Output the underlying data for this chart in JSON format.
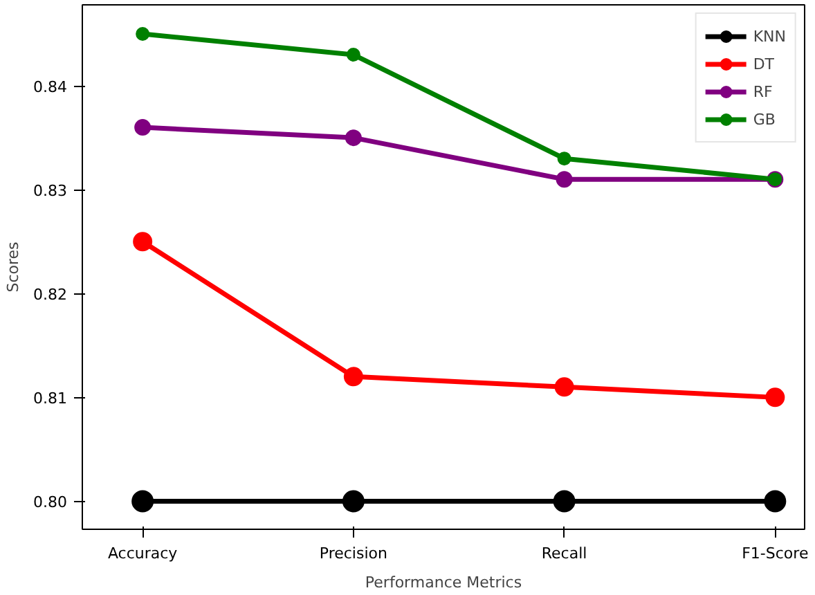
{
  "chart_data": {
    "type": "line",
    "xlabel": "Performance Metrics",
    "ylabel": "Scores",
    "categories": [
      "Accuracy",
      "Precision",
      "Recall",
      "F1-Score"
    ],
    "series": [
      {
        "name": "KNN",
        "color": "#000000",
        "values": [
          0.8,
          0.8,
          0.8,
          0.8
        ]
      },
      {
        "name": "DT",
        "color": "#ff0000",
        "values": [
          0.825,
          0.812,
          0.811,
          0.81
        ]
      },
      {
        "name": "RF",
        "color": "#800080",
        "values": [
          0.836,
          0.835,
          0.831,
          0.831
        ]
      },
      {
        "name": "GB",
        "color": "#008000",
        "values": [
          0.845,
          0.843,
          0.833,
          0.831
        ]
      }
    ],
    "ylim": [
      0.7973,
      0.8478
    ],
    "yticks": [
      {
        "value": 0.8,
        "label": "0.80"
      },
      {
        "value": 0.81,
        "label": "0.81"
      },
      {
        "value": 0.82,
        "label": "0.82"
      },
      {
        "value": 0.83,
        "label": "0.83"
      },
      {
        "value": 0.84,
        "label": "0.84"
      }
    ],
    "grid": false,
    "legend": "top right",
    "marker": "circle",
    "line_style": "solid"
  }
}
